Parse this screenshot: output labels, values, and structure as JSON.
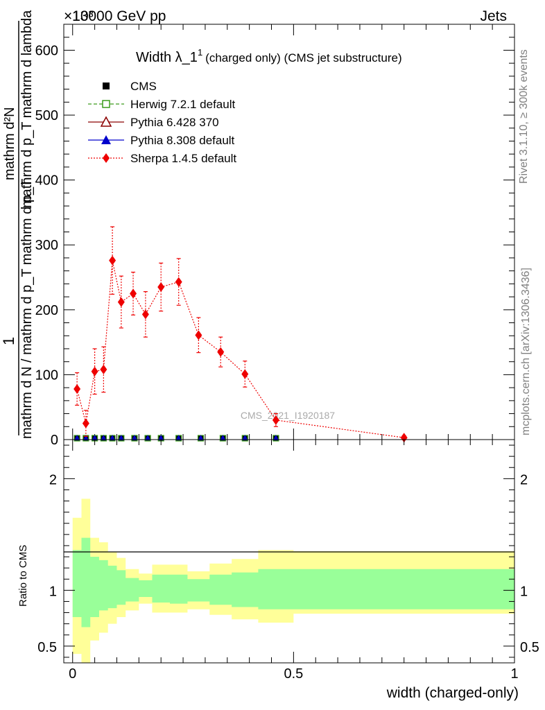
{
  "header": {
    "left": "13000 GeV pp",
    "right": "Jets",
    "exponent": "×10³"
  },
  "side_labels": {
    "rivet": "Rivet 3.1.10, ≥ 300k events",
    "mcplots": "mcplots.cern.ch [arXiv:1306.3436]"
  },
  "chart_data": [
    {
      "type": "line",
      "title_main": "Width λ_1",
      "title_sup": "1",
      "title_rest": "(charged only) (CMS jet substructure)",
      "ylabel_lines": [
        "1",
        "mathrm d N / mathrm d p_T mathrm d p_T",
        "mathrm d^2 N",
        "mathrm d p_T mathrm d lambda"
      ],
      "ylabel_top": "mathrm d²N",
      "ylabel_mid": "mathrm d p_T mathrm d lambda",
      "ylabel_one": "1",
      "ylabel_bottom": "mathrm d N / mathrm d p_T mathrm d p_T",
      "yscale_note": "×10³",
      "watermark": "CMS_2021_I1920187",
      "ylim": [
        0,
        640
      ],
      "xlim": [
        -0.02,
        1.0
      ],
      "yticks": [
        0,
        100,
        200,
        300,
        400,
        500,
        600
      ],
      "ytick_labels": [
        "0",
        "100",
        "200",
        "300",
        "400",
        "500",
        "600"
      ],
      "legend": [
        {
          "name": "CMS",
          "color": "#000000",
          "marker": "square-filled",
          "line": "none"
        },
        {
          "name": "Herwig 7.2.1 default",
          "color": "#3a9b1a",
          "marker": "square-open",
          "line": "dashed"
        },
        {
          "name": "Pythia 6.428 370",
          "color": "#8b0000",
          "marker": "triangle-open",
          "line": "solid"
        },
        {
          "name": "Pythia 8.308 default",
          "color": "#0000cc",
          "marker": "triangle-filled",
          "line": "solid"
        },
        {
          "name": "Sherpa 1.4.5 default",
          "color": "#ee0000",
          "marker": "diamond-filled",
          "line": "dotted"
        }
      ],
      "baseline_x": [
        0.01,
        0.03,
        0.05,
        0.07,
        0.09,
        0.11,
        0.14,
        0.17,
        0.2,
        0.24,
        0.29,
        0.34,
        0.39,
        0.46
      ],
      "sherpa": {
        "x": [
          0.01,
          0.03,
          0.05,
          0.07,
          0.09,
          0.11,
          0.137,
          0.165,
          0.2,
          0.24,
          0.285,
          0.335,
          0.39,
          0.46,
          0.75
        ],
        "y": [
          78,
          25,
          105,
          108,
          276,
          212,
          225,
          193,
          235,
          243,
          161,
          135,
          101,
          30,
          3
        ],
        "err": [
          25,
          20,
          35,
          35,
          52,
          40,
          33,
          35,
          37,
          36,
          27,
          23,
          20,
          10,
          3
        ]
      }
    },
    {
      "type": "area",
      "ylabel": "Ratio to CMS",
      "xlabel": "width (charged-only)",
      "ylim": [
        0.35,
        2.35
      ],
      "xlim": [
        -0.02,
        1.0
      ],
      "yticks": [
        0.5,
        1,
        2
      ],
      "ytick_labels": [
        "0.5",
        "1",
        "2"
      ],
      "xticks": [
        0,
        0.5,
        1
      ],
      "xtick_labels": [
        "0",
        "0.5",
        "1"
      ],
      "bin_edges": [
        0.0,
        0.02,
        0.04,
        0.06,
        0.08,
        0.1,
        0.12,
        0.15,
        0.18,
        0.22,
        0.26,
        0.31,
        0.36,
        0.42,
        0.5,
        1.0
      ],
      "band_green_up": [
        1.36,
        1.47,
        1.3,
        1.27,
        1.22,
        1.18,
        1.11,
        1.09,
        1.14,
        1.14,
        1.1,
        1.14,
        1.16,
        1.19,
        1.19
      ],
      "band_green_dn": [
        0.76,
        0.67,
        0.76,
        0.82,
        0.84,
        0.87,
        0.9,
        0.94,
        0.89,
        0.88,
        0.9,
        0.87,
        0.85,
        0.83,
        0.83
      ],
      "band_yellow_up": [
        1.65,
        1.82,
        1.47,
        1.43,
        1.34,
        1.29,
        1.19,
        1.15,
        1.23,
        1.23,
        1.17,
        1.24,
        1.28,
        1.36,
        1.35
      ],
      "band_yellow_dn": [
        0.43,
        0.35,
        0.55,
        0.62,
        0.7,
        0.76,
        0.82,
        0.88,
        0.8,
        0.8,
        0.83,
        0.78,
        0.74,
        0.71,
        0.79
      ]
    }
  ]
}
